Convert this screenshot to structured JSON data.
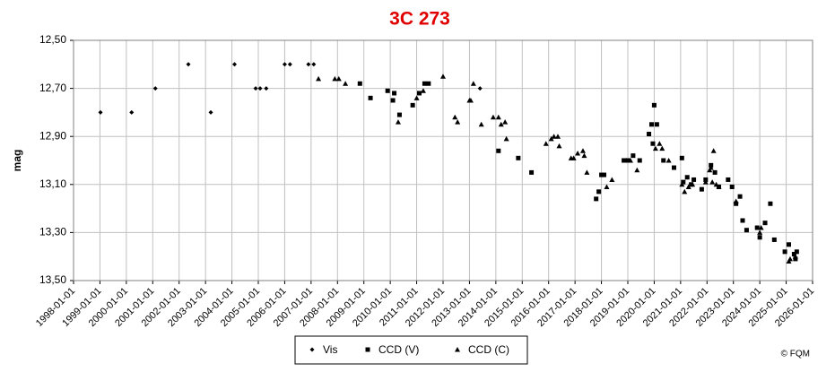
{
  "chart_data": {
    "type": "scatter",
    "title": "3C 273",
    "y_label": "mag",
    "credit": "© FQM",
    "title_color": "#e00000",
    "grid": true,
    "y_inverted": true,
    "legend": "bottom",
    "xlim": [
      1998,
      2026
    ],
    "ylim": [
      12.5,
      13.5
    ],
    "xticks": [
      {
        "value": 1998,
        "label": "1998-01-01"
      },
      {
        "value": 1999,
        "label": "1999-01-01"
      },
      {
        "value": 2000,
        "label": "2000-01-01"
      },
      {
        "value": 2001,
        "label": "2001-01-01"
      },
      {
        "value": 2002,
        "label": "2002-01-01"
      },
      {
        "value": 2003,
        "label": "2003-01-01"
      },
      {
        "value": 2004,
        "label": "2004-01-01"
      },
      {
        "value": 2005,
        "label": "2005-01-01"
      },
      {
        "value": 2006,
        "label": "2006-01-01"
      },
      {
        "value": 2007,
        "label": "2007-01-01"
      },
      {
        "value": 2008,
        "label": "2008-01-01"
      },
      {
        "value": 2009,
        "label": "2009-01-01"
      },
      {
        "value": 2010,
        "label": "2010-01-01"
      },
      {
        "value": 2011,
        "label": "2011-01-01"
      },
      {
        "value": 2012,
        "label": "2012-01-01"
      },
      {
        "value": 2013,
        "label": "2013-01-01"
      },
      {
        "value": 2014,
        "label": "2014-01-01"
      },
      {
        "value": 2015,
        "label": "2015-01-01"
      },
      {
        "value": 2016,
        "label": "2016-01-01"
      },
      {
        "value": 2017,
        "label": "2017-01-01"
      },
      {
        "value": 2018,
        "label": "2018-01-01"
      },
      {
        "value": 2019,
        "label": "2019-01-01"
      },
      {
        "value": 2020,
        "label": "2020-01-01"
      },
      {
        "value": 2021,
        "label": "2021-01-01"
      },
      {
        "value": 2022,
        "label": "2022-01-01"
      },
      {
        "value": 2023,
        "label": "2023-01-01"
      },
      {
        "value": 2024,
        "label": "2024-01-01"
      },
      {
        "value": 2025,
        "label": "2025-01-01"
      },
      {
        "value": 2026,
        "label": "2026-01-01"
      }
    ],
    "yticks": [
      {
        "value": 12.5,
        "label": "12,50"
      },
      {
        "value": 12.7,
        "label": "12,70"
      },
      {
        "value": 12.9,
        "label": "12,90"
      },
      {
        "value": 13.1,
        "label": "13,10"
      },
      {
        "value": 13.3,
        "label": "13,30"
      },
      {
        "value": 13.5,
        "label": "13,50"
      }
    ],
    "series": [
      {
        "name": "Vis",
        "color": "#000000",
        "marker": "diamond",
        "x": [
          1999.02,
          2000.2,
          2001.1,
          2002.35,
          2003.2,
          2004.1,
          2004.9,
          2005.07,
          2005.3,
          2006.0,
          2006.2,
          2006.9,
          2007.1,
          2013.4
        ],
        "values": [
          12.8,
          12.8,
          12.7,
          12.6,
          12.8,
          12.6,
          12.7,
          12.7,
          12.7,
          12.6,
          12.6,
          12.6,
          12.6,
          12.7
        ]
      },
      {
        "name": "CCD (V)",
        "color": "#000000",
        "marker": "square",
        "x": [
          2008.85,
          2009.25,
          2009.9,
          2010.1,
          2010.15,
          2010.35,
          2010.85,
          2011.1,
          2011.3,
          2011.45,
          2014.1,
          2014.85,
          2015.35,
          2017.8,
          2017.9,
          2018.0,
          2018.1,
          2018.85,
          2019.0,
          2019.2,
          2019.45,
          2019.8,
          2019.9,
          2020.0,
          2020.1,
          2019.95,
          2020.35,
          2020.75,
          2021.05,
          2021.1,
          2021.25,
          2021.4,
          2021.5,
          2021.8,
          2021.95,
          2022.15,
          2022.3,
          2022.45,
          2022.8,
          2022.95,
          2023.1,
          2023.25,
          2023.35,
          2023.5,
          2023.9,
          2024.0,
          2024.2,
          2024.4,
          2024.55,
          2024.95,
          2025.1,
          2025.3,
          2025.35,
          2025.4
        ],
        "values": [
          12.68,
          12.74,
          12.71,
          12.75,
          12.72,
          12.81,
          12.77,
          12.72,
          12.68,
          12.68,
          12.96,
          12.99,
          13.05,
          13.16,
          13.13,
          13.06,
          13.06,
          13.0,
          13.0,
          12.98,
          13.0,
          12.89,
          12.85,
          12.77,
          12.85,
          12.93,
          13.0,
          13.03,
          12.99,
          13.09,
          13.07,
          13.1,
          13.08,
          13.12,
          13.08,
          13.02,
          13.05,
          13.11,
          13.08,
          13.11,
          13.18,
          13.15,
          13.25,
          13.29,
          13.28,
          13.32,
          13.26,
          13.18,
          13.33,
          13.38,
          13.35,
          13.39,
          13.41,
          13.38
        ]
      },
      {
        "name": "CCD (C)",
        "color": "#000000",
        "marker": "triangle",
        "x": [
          2007.28,
          2007.9,
          2008.05,
          2008.3,
          2010.3,
          2011.0,
          2011.25,
          2012.0,
          2012.45,
          2012.55,
          2013.0,
          2013.05,
          2013.15,
          2013.45,
          2013.9,
          2014.1,
          2014.2,
          2014.35,
          2014.4,
          2015.9,
          2016.1,
          2016.2,
          2016.35,
          2016.4,
          2016.85,
          2016.95,
          2017.1,
          2017.3,
          2017.35,
          2017.45,
          2018.2,
          2018.4,
          2018.95,
          2019.1,
          2019.35,
          2020.05,
          2020.2,
          2020.3,
          2020.55,
          2021.05,
          2021.15,
          2021.3,
          2021.45,
          2021.95,
          2022.1,
          2022.15,
          2022.2,
          2022.25,
          2022.35,
          2022.45,
          2023.1,
          2024.0,
          2024.05,
          2025.1,
          2025.15,
          2025.35
        ],
        "values": [
          12.66,
          12.66,
          12.66,
          12.68,
          12.84,
          12.74,
          12.71,
          12.65,
          12.82,
          12.84,
          12.75,
          12.75,
          12.68,
          12.85,
          12.82,
          12.82,
          12.85,
          12.84,
          12.91,
          12.93,
          12.91,
          12.9,
          12.9,
          12.94,
          12.99,
          12.99,
          12.97,
          12.96,
          12.98,
          13.05,
          13.11,
          13.08,
          13.0,
          13.0,
          13.04,
          12.95,
          12.93,
          12.95,
          13.0,
          13.1,
          13.13,
          13.11,
          13.1,
          13.09,
          13.04,
          13.03,
          13.09,
          12.96,
          13.1,
          13.11,
          13.17,
          13.3,
          13.28,
          13.42,
          13.41,
          13.4
        ]
      }
    ]
  }
}
